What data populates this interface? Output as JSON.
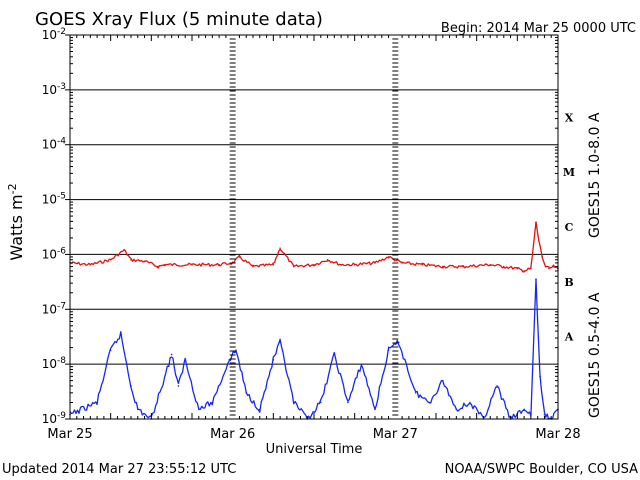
{
  "header": {
    "title": "GOES Xray Flux (5 minute data)",
    "begin": "Begin:  2014 Mar 25 0000 UTC"
  },
  "footer": {
    "updated": "Updated 2014 Mar 27 23:55:12 UTC",
    "credit": "NOAA/SWPC Boulder, CO USA"
  },
  "colors": {
    "long": "#e8100f",
    "short": "#1428f5",
    "axis": "#000000"
  },
  "chart_data": {
    "type": "line",
    "title": "GOES Xray Flux (5 minute data)",
    "xlabel": "Universal Time",
    "ylabel_base": "Watts m",
    "ylabel_exp": "-2",
    "y_scale": "log",
    "ylim": [
      1e-09,
      0.01
    ],
    "xlim": [
      "2014-03-25 00:00",
      "2014-03-28 00:00"
    ],
    "grid": "horizontal at each decade",
    "x_ticks": [
      "Mar 25",
      "Mar 26",
      "Mar 27",
      "Mar 28"
    ],
    "y_ticks": [
      {
        "value": 0.01,
        "base": "10",
        "exp": "-2"
      },
      {
        "value": 0.001,
        "base": "10",
        "exp": "-3"
      },
      {
        "value": 0.0001,
        "base": "10",
        "exp": "-4"
      },
      {
        "value": 1e-05,
        "base": "10",
        "exp": "-5"
      },
      {
        "value": 1e-06,
        "base": "10",
        "exp": "-6"
      },
      {
        "value": 1e-07,
        "base": "10",
        "exp": "-7"
      },
      {
        "value": 1e-08,
        "base": "10",
        "exp": "-8"
      },
      {
        "value": 1e-09,
        "base": "10",
        "exp": "-9"
      }
    ],
    "flare_classes": [
      {
        "label": "X",
        "value": 0.000316
      },
      {
        "label": "M",
        "value": 3.16e-05
      },
      {
        "label": "C",
        "value": 3.16e-06
      },
      {
        "label": "B",
        "value": 3.16e-07
      },
      {
        "label": "A",
        "value": 3.16e-08
      }
    ],
    "series": [
      {
        "name": "GOES15 1.0-8.0 A",
        "color": "#e8100f",
        "x": [
          "2014-03-25 00:00",
          "2014-03-25 03:00",
          "2014-03-25 06:00",
          "2014-03-25 08:00",
          "2014-03-25 09:00",
          "2014-03-25 11:00",
          "2014-03-25 13:00",
          "2014-03-25 14:00",
          "2014-03-25 18:00",
          "2014-03-25 22:00",
          "2014-03-26 00:00",
          "2014-03-26 01:00",
          "2014-03-26 03:00",
          "2014-03-26 06:00",
          "2014-03-26 07:00",
          "2014-03-26 09:00",
          "2014-03-26 12:00",
          "2014-03-26 14:00",
          "2014-03-26 16:00",
          "2014-03-26 18:00",
          "2014-03-26 21:00",
          "2014-03-26 23:00",
          "2014-03-27 01:00",
          "2014-03-27 04:00",
          "2014-03-27 07:00",
          "2014-03-27 10:00",
          "2014-03-27 14:00",
          "2014-03-27 16:00",
          "2014-03-27 18:00",
          "2014-03-27 19:00",
          "2014-03-27 20:00",
          "2014-03-27 20:45",
          "2014-03-27 21:10",
          "2014-03-27 21:40",
          "2014-03-27 22:10",
          "2014-03-27 22:40",
          "2014-03-27 23:20",
          "2014-03-28 00:00"
        ],
        "values": [
          7e-07,
          6.5e-07,
          8e-07,
          1.2e-06,
          8e-07,
          7.5e-07,
          6e-07,
          6.5e-07,
          6.5e-07,
          6.5e-07,
          7e-07,
          9e-07,
          6e-07,
          6.5e-07,
          1.3e-06,
          6e-07,
          6.5e-07,
          8e-07,
          6.5e-07,
          6.5e-07,
          7e-07,
          9e-07,
          7e-07,
          6.5e-07,
          6e-07,
          6e-07,
          6.5e-07,
          6e-07,
          5.5e-07,
          5e-07,
          5.5e-07,
          3.8e-06,
          1.8e-06,
          9e-07,
          6e-07,
          5.5e-07,
          6e-07,
          5.5e-07
        ]
      },
      {
        "name": "GOES15 0.5-4.0 A",
        "color": "#1428f5",
        "x": [
          "2014-03-25 00:00",
          "2014-03-25 04:00",
          "2014-03-25 06:00",
          "2014-03-25 07:30",
          "2014-03-25 09:00",
          "2014-03-25 10:00",
          "2014-03-25 12:00",
          "2014-03-25 15:00",
          "2014-03-25 16:00",
          "2014-03-25 17:00",
          "2014-03-25 19:00",
          "2014-03-25 21:00",
          "2014-03-25 23:30",
          "2014-03-26 00:30",
          "2014-03-26 02:00",
          "2014-03-26 04:00",
          "2014-03-26 06:00",
          "2014-03-26 07:00",
          "2014-03-26 09:00",
          "2014-03-26 11:00",
          "2014-03-26 13:00",
          "2014-03-26 15:00",
          "2014-03-26 17:00",
          "2014-03-26 19:00",
          "2014-03-26 21:00",
          "2014-03-26 23:00",
          "2014-03-27 00:30",
          "2014-03-27 03:00",
          "2014-03-27 05:00",
          "2014-03-27 07:00",
          "2014-03-27 09:00",
          "2014-03-27 11:00",
          "2014-03-27 13:00",
          "2014-03-27 15:00",
          "2014-03-27 17:00",
          "2014-03-27 19:00",
          "2014-03-27 20:00",
          "2014-03-27 20:45",
          "2014-03-27 21:20",
          "2014-03-27 22:00",
          "2014-03-27 23:00",
          "2014-03-28 00:00"
        ],
        "values": [
          1.2e-09,
          2e-09,
          1.8e-08,
          3.5e-08,
          4e-09,
          1.5e-09,
          1e-09,
          1.5e-08,
          4e-09,
          1.2e-08,
          1.5e-09,
          2e-09,
          1.2e-08,
          1.8e-08,
          3e-09,
          1.5e-09,
          1.2e-08,
          2.5e-08,
          2e-09,
          1e-09,
          2e-09,
          1.5e-08,
          2e-09,
          1e-08,
          1.5e-09,
          1.8e-08,
          2.5e-08,
          3e-09,
          2e-09,
          5e-09,
          1.5e-09,
          2e-09,
          1e-09,
          4e-09,
          1e-09,
          1.5e-09,
          1.2e-09,
          3.5e-07,
          6e-09,
          1.2e-09,
          1e-09,
          1.5e-09
        ]
      }
    ]
  }
}
